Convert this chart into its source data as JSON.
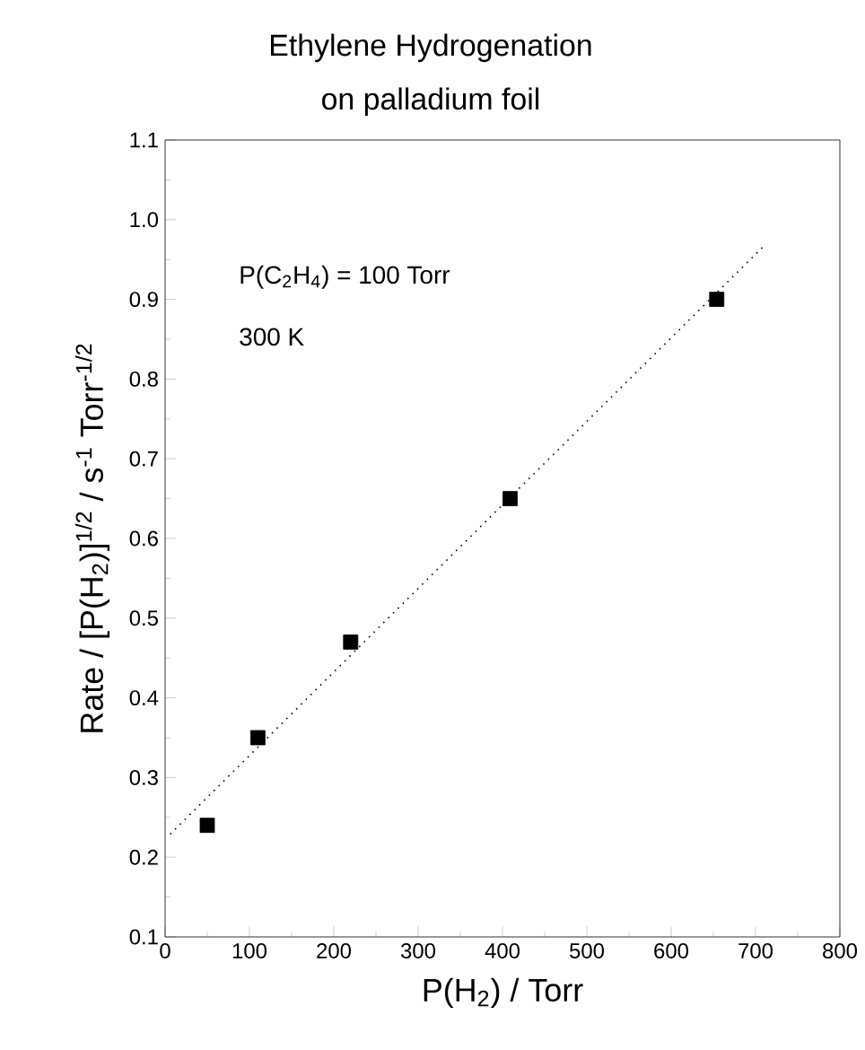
{
  "chart_data": {
    "type": "scatter",
    "title": "Ethylene Hydrogenation",
    "subtitle": "on palladium foil",
    "xlabel": "P(H$_{2}$)  /  Torr",
    "ylabel": "Rate / [P(H$_{2}$)]$^{1/2}$  /  s$^{-1}$ Torr$^{-1/2}$",
    "annotations": [
      "P(C$_{2}$H$_{4}$) = 100 Torr",
      "300 K"
    ],
    "xlim": [
      0,
      800
    ],
    "ylim": [
      0.1,
      1.1
    ],
    "xticks": [
      0,
      100,
      200,
      300,
      400,
      500,
      600,
      700,
      800
    ],
    "yticks": [
      0.1,
      0.2,
      0.3,
      0.4,
      0.5,
      0.6,
      0.7,
      0.8,
      0.9,
      {
        "value": 1.0,
        "label": "1.0"
      },
      1.1
    ],
    "grid": false,
    "series": [
      {
        "color": "#000000",
        "marker": "square",
        "x": [
          50,
          110,
          220,
          409,
          654
        ],
        "values": [
          0.24,
          0.35,
          0.47,
          0.65,
          0.9
        ]
      },
      {
        "type": "line",
        "color": "#000000",
        "marker": "none",
        "line_style": "dotted",
        "x": [
          6,
          708
        ],
        "values": [
          0.229,
          0.965
        ]
      }
    ]
  }
}
